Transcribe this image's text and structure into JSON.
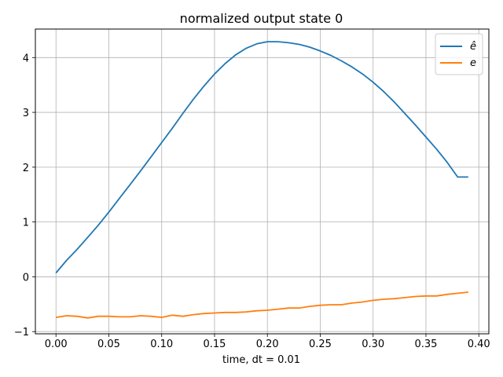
{
  "chart_data": {
    "type": "line",
    "title": "normalized output state 0",
    "xlabel": "time, dt = 0.01",
    "ylabel": "",
    "xlim": [
      -0.0195,
      0.4095
    ],
    "ylim": [
      -1.04,
      4.52
    ],
    "xticks": [
      0.0,
      0.05,
      0.1,
      0.15,
      0.2,
      0.25,
      0.3,
      0.35,
      0.4
    ],
    "xtick_labels": [
      "0.00",
      "0.05",
      "0.10",
      "0.15",
      "0.20",
      "0.25",
      "0.30",
      "0.35",
      "0.40"
    ],
    "yticks": [
      -1,
      0,
      1,
      2,
      3,
      4
    ],
    "ytick_labels": [
      "−1",
      "0",
      "1",
      "2",
      "3",
      "4"
    ],
    "grid": true,
    "legend_position": "top-right",
    "x": [
      0.0,
      0.01,
      0.02,
      0.03,
      0.04,
      0.05,
      0.06,
      0.07,
      0.08,
      0.09,
      0.1,
      0.11,
      0.12,
      0.13,
      0.14,
      0.15,
      0.16,
      0.17,
      0.18,
      0.19,
      0.2,
      0.21,
      0.22,
      0.23,
      0.24,
      0.25,
      0.26,
      0.27,
      0.28,
      0.29,
      0.3,
      0.31,
      0.32,
      0.33,
      0.34,
      0.35,
      0.36,
      0.37,
      0.38,
      0.39
    ],
    "series": [
      {
        "name": "ê",
        "color": "#1f77b4",
        "values": [
          0.07,
          0.3,
          0.5,
          0.72,
          0.94,
          1.18,
          1.43,
          1.68,
          1.93,
          2.19,
          2.45,
          2.71,
          2.98,
          3.24,
          3.48,
          3.7,
          3.89,
          4.05,
          4.17,
          4.25,
          4.29,
          4.29,
          4.27,
          4.24,
          4.19,
          4.12,
          4.04,
          3.94,
          3.83,
          3.7,
          3.55,
          3.38,
          3.19,
          2.98,
          2.77,
          2.55,
          2.33,
          2.09,
          1.82,
          1.82
        ]
      },
      {
        "name": "e",
        "color": "#ff7f0e",
        "values": [
          -0.74,
          -0.71,
          -0.72,
          -0.75,
          -0.72,
          -0.72,
          -0.73,
          -0.73,
          -0.71,
          -0.72,
          -0.74,
          -0.7,
          -0.72,
          -0.69,
          -0.67,
          -0.66,
          -0.65,
          -0.65,
          -0.64,
          -0.62,
          -0.61,
          -0.59,
          -0.57,
          -0.57,
          -0.54,
          -0.52,
          -0.51,
          -0.51,
          -0.48,
          -0.46,
          -0.43,
          -0.41,
          -0.4,
          -0.38,
          -0.36,
          -0.35,
          -0.35,
          -0.32,
          -0.3,
          -0.28
        ]
      }
    ]
  }
}
